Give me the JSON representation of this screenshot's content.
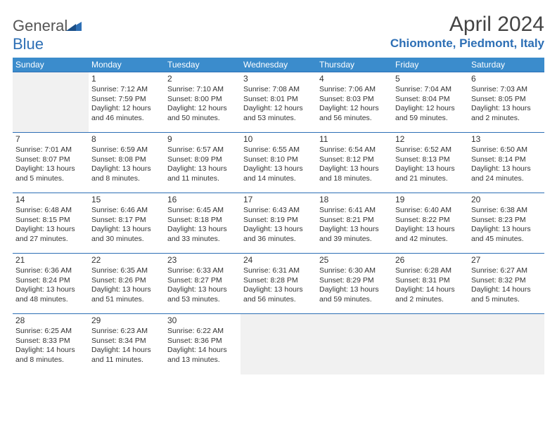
{
  "logo": {
    "text1": "General",
    "text2": "Blue"
  },
  "title": "April 2024",
  "location": "Chiomonte, Piedmont, Italy",
  "colors": {
    "header_bg": "#3b8ccc",
    "border": "#2d6fb5",
    "empty_bg": "#f1f1f1",
    "accent": "#2d6fb5"
  },
  "day_headers": [
    "Sunday",
    "Monday",
    "Tuesday",
    "Wednesday",
    "Thursday",
    "Friday",
    "Saturday"
  ],
  "weeks": [
    [
      null,
      {
        "n": "1",
        "sunrise": "7:12 AM",
        "sunset": "7:59 PM",
        "daylight": "12 hours and 46 minutes."
      },
      {
        "n": "2",
        "sunrise": "7:10 AM",
        "sunset": "8:00 PM",
        "daylight": "12 hours and 50 minutes."
      },
      {
        "n": "3",
        "sunrise": "7:08 AM",
        "sunset": "8:01 PM",
        "daylight": "12 hours and 53 minutes."
      },
      {
        "n": "4",
        "sunrise": "7:06 AM",
        "sunset": "8:03 PM",
        "daylight": "12 hours and 56 minutes."
      },
      {
        "n": "5",
        "sunrise": "7:04 AM",
        "sunset": "8:04 PM",
        "daylight": "12 hours and 59 minutes."
      },
      {
        "n": "6",
        "sunrise": "7:03 AM",
        "sunset": "8:05 PM",
        "daylight": "13 hours and 2 minutes."
      }
    ],
    [
      {
        "n": "7",
        "sunrise": "7:01 AM",
        "sunset": "8:07 PM",
        "daylight": "13 hours and 5 minutes."
      },
      {
        "n": "8",
        "sunrise": "6:59 AM",
        "sunset": "8:08 PM",
        "daylight": "13 hours and 8 minutes."
      },
      {
        "n": "9",
        "sunrise": "6:57 AM",
        "sunset": "8:09 PM",
        "daylight": "13 hours and 11 minutes."
      },
      {
        "n": "10",
        "sunrise": "6:55 AM",
        "sunset": "8:10 PM",
        "daylight": "13 hours and 14 minutes."
      },
      {
        "n": "11",
        "sunrise": "6:54 AM",
        "sunset": "8:12 PM",
        "daylight": "13 hours and 18 minutes."
      },
      {
        "n": "12",
        "sunrise": "6:52 AM",
        "sunset": "8:13 PM",
        "daylight": "13 hours and 21 minutes."
      },
      {
        "n": "13",
        "sunrise": "6:50 AM",
        "sunset": "8:14 PM",
        "daylight": "13 hours and 24 minutes."
      }
    ],
    [
      {
        "n": "14",
        "sunrise": "6:48 AM",
        "sunset": "8:15 PM",
        "daylight": "13 hours and 27 minutes."
      },
      {
        "n": "15",
        "sunrise": "6:46 AM",
        "sunset": "8:17 PM",
        "daylight": "13 hours and 30 minutes."
      },
      {
        "n": "16",
        "sunrise": "6:45 AM",
        "sunset": "8:18 PM",
        "daylight": "13 hours and 33 minutes."
      },
      {
        "n": "17",
        "sunrise": "6:43 AM",
        "sunset": "8:19 PM",
        "daylight": "13 hours and 36 minutes."
      },
      {
        "n": "18",
        "sunrise": "6:41 AM",
        "sunset": "8:21 PM",
        "daylight": "13 hours and 39 minutes."
      },
      {
        "n": "19",
        "sunrise": "6:40 AM",
        "sunset": "8:22 PM",
        "daylight": "13 hours and 42 minutes."
      },
      {
        "n": "20",
        "sunrise": "6:38 AM",
        "sunset": "8:23 PM",
        "daylight": "13 hours and 45 minutes."
      }
    ],
    [
      {
        "n": "21",
        "sunrise": "6:36 AM",
        "sunset": "8:24 PM",
        "daylight": "13 hours and 48 minutes."
      },
      {
        "n": "22",
        "sunrise": "6:35 AM",
        "sunset": "8:26 PM",
        "daylight": "13 hours and 51 minutes."
      },
      {
        "n": "23",
        "sunrise": "6:33 AM",
        "sunset": "8:27 PM",
        "daylight": "13 hours and 53 minutes."
      },
      {
        "n": "24",
        "sunrise": "6:31 AM",
        "sunset": "8:28 PM",
        "daylight": "13 hours and 56 minutes."
      },
      {
        "n": "25",
        "sunrise": "6:30 AM",
        "sunset": "8:29 PM",
        "daylight": "13 hours and 59 minutes."
      },
      {
        "n": "26",
        "sunrise": "6:28 AM",
        "sunset": "8:31 PM",
        "daylight": "14 hours and 2 minutes."
      },
      {
        "n": "27",
        "sunrise": "6:27 AM",
        "sunset": "8:32 PM",
        "daylight": "14 hours and 5 minutes."
      }
    ],
    [
      {
        "n": "28",
        "sunrise": "6:25 AM",
        "sunset": "8:33 PM",
        "daylight": "14 hours and 8 minutes."
      },
      {
        "n": "29",
        "sunrise": "6:23 AM",
        "sunset": "8:34 PM",
        "daylight": "14 hours and 11 minutes."
      },
      {
        "n": "30",
        "sunrise": "6:22 AM",
        "sunset": "8:36 PM",
        "daylight": "14 hours and 13 minutes."
      },
      null,
      null,
      null,
      null
    ]
  ]
}
